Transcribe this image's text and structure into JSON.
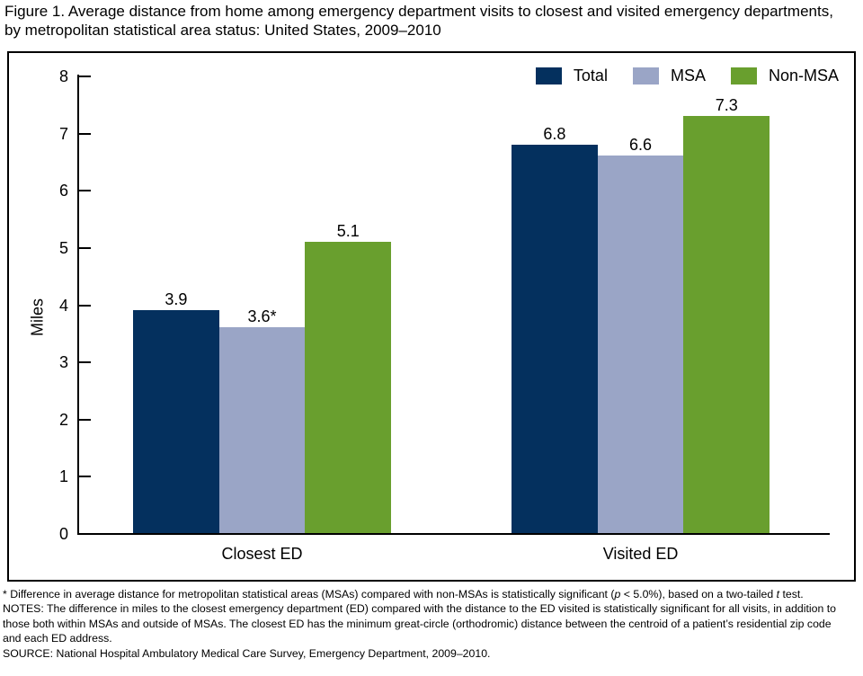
{
  "title": "Figure 1. Average distance from home among emergency department visits to closest and visited emergency departments, by metropolitan statistical area status: United States, 2009–2010",
  "chart_data": {
    "type": "bar",
    "categories": [
      "Closest ED",
      "Visited ED"
    ],
    "series": [
      {
        "name": "Total",
        "color": "#04305e",
        "values": [
          3.9,
          6.8
        ],
        "value_labels": [
          "3.9",
          "6.8"
        ]
      },
      {
        "name": "MSA",
        "color": "#9aa5c6",
        "values": [
          3.6,
          6.6
        ],
        "value_labels": [
          "3.6*",
          "6.6"
        ]
      },
      {
        "name": "Non-MSA",
        "color": "#699f2e",
        "values": [
          5.1,
          7.3
        ],
        "value_labels": [
          "5.1",
          "7.3"
        ]
      }
    ],
    "xlabel": "",
    "ylabel": "Miles",
    "ylim": [
      0,
      8
    ],
    "yticks": [
      0,
      1,
      2,
      3,
      4,
      5,
      6,
      7,
      8
    ],
    "grid": false,
    "legend_position": "top-right"
  },
  "footnotes": {
    "star": {
      "pre": "* Difference in average distance for metropolitan statistical areas (MSAs) compared with non-MSAs is statistically significant (",
      "p_symbol": "p",
      "mid": " < 5.0%), based on a two-tailed ",
      "t_symbol": "t",
      "post": " test."
    },
    "notes": "NOTES: The difference in miles to the closest emergency department (ED) compared with the distance to the ED visited is statistically significant for all visits, in addition to those both within MSAs and outside of MSAs. The closest ED has the minimum great-circle (orthodromic) distance between the centroid of a patient’s residential zip code and each ED address.",
    "source": "SOURCE: National Hospital Ambulatory Medical Care Survey, Emergency Department, 2009–2010."
  }
}
